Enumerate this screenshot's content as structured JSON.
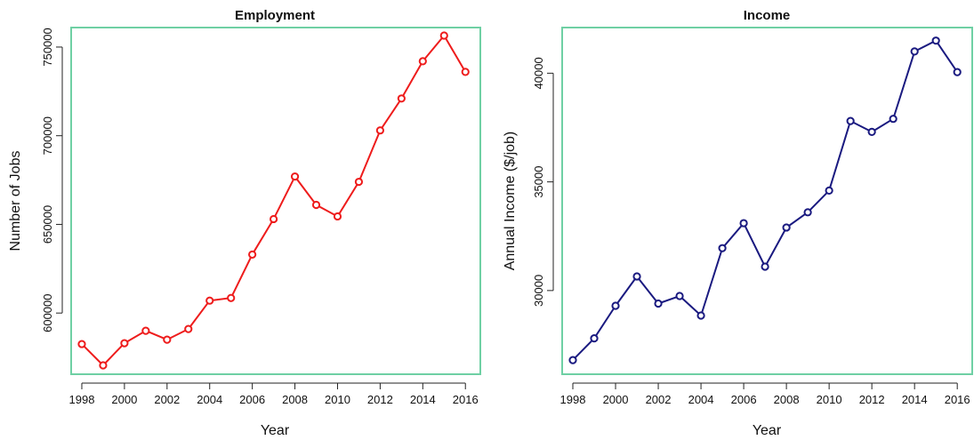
{
  "chart_data": [
    {
      "type": "line",
      "title": "Employment",
      "xlabel": "Year",
      "ylabel": "Number of Jobs",
      "x": [
        1998,
        1999,
        2000,
        2001,
        2002,
        2003,
        2004,
        2005,
        2006,
        2007,
        2008,
        2009,
        2010,
        2011,
        2012,
        2013,
        2014,
        2015,
        2016
      ],
      "series": [
        {
          "values": [
            582500,
            570500,
            583000,
            590000,
            585000,
            591000,
            607000,
            608500,
            633000,
            653000,
            677000,
            661000,
            654500,
            674000,
            703000,
            721000,
            742000,
            756500,
            736000
          ]
        }
      ],
      "xlim": [
        1997.5,
        2016.7
      ],
      "ylim": [
        565500,
        761000
      ],
      "xticks": [
        1998,
        2000,
        2002,
        2004,
        2006,
        2008,
        2010,
        2012,
        2014,
        2016
      ],
      "yticks": [
        600000,
        650000,
        700000,
        750000
      ],
      "grid": false,
      "colors": {
        "line": "#ee1c1c",
        "frame": "#6fd0a4"
      }
    },
    {
      "type": "line",
      "title": "Income",
      "xlabel": "Year",
      "ylabel": "Annual Income ($/job)",
      "x": [
        1998,
        1999,
        2000,
        2001,
        2002,
        2003,
        2004,
        2005,
        2006,
        2007,
        2008,
        2009,
        2010,
        2011,
        2012,
        2013,
        2014,
        2015,
        2016
      ],
      "series": [
        {
          "values": [
            26800,
            27800,
            29300,
            30650,
            29400,
            29750,
            28850,
            31950,
            33100,
            31100,
            32900,
            33600,
            34600,
            37800,
            37300,
            37900,
            41000,
            41500,
            40050
          ]
        }
      ],
      "xlim": [
        1997.5,
        2016.7
      ],
      "ylim": [
        26150,
        42100
      ],
      "xticks": [
        1998,
        2000,
        2002,
        2004,
        2006,
        2008,
        2010,
        2012,
        2014,
        2016
      ],
      "yticks": [
        30000,
        35000,
        40000
      ],
      "grid": false,
      "colors": {
        "line": "#1a1a80",
        "frame": "#6fd0a4"
      }
    }
  ]
}
